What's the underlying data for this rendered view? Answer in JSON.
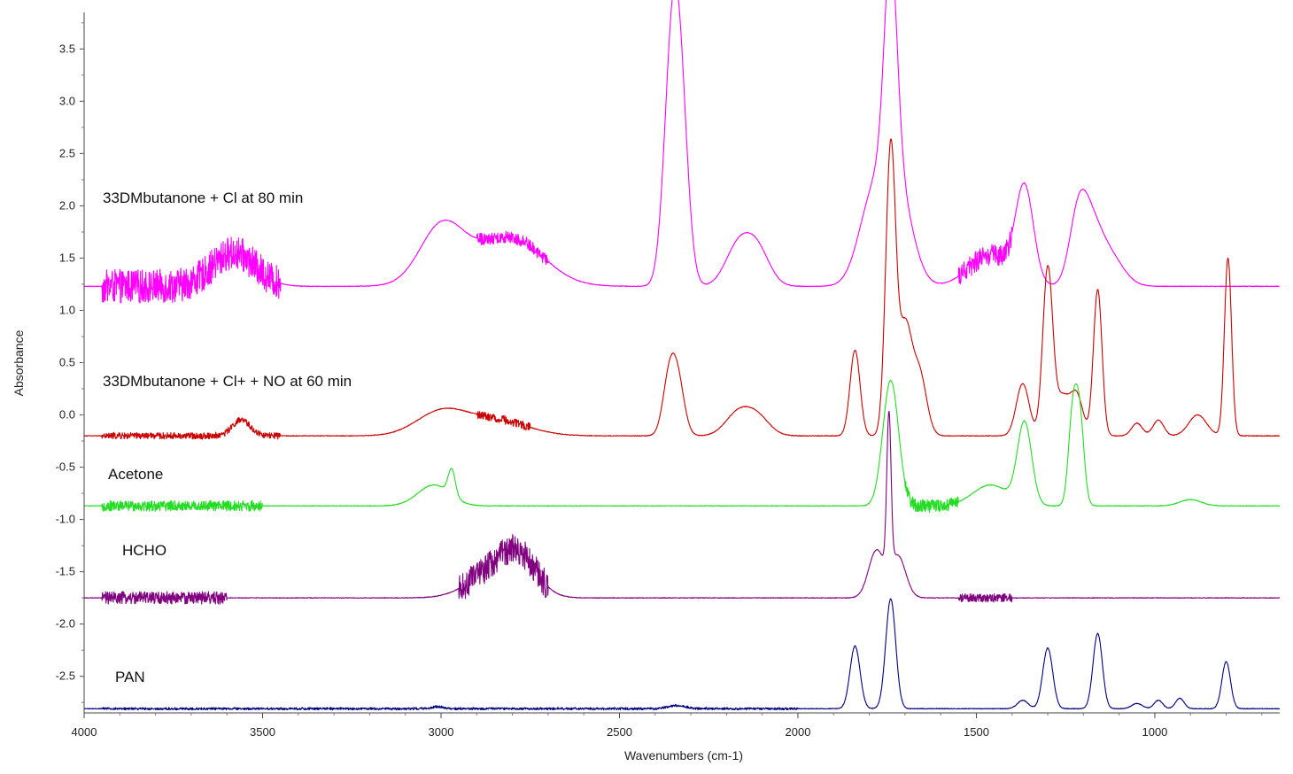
{
  "chart_data": {
    "type": "line",
    "title": "",
    "xlabel": "Wavenumbers (cm-1)",
    "ylabel": "Absorbance",
    "xlim": [
      4000,
      650
    ],
    "x_reversed": true,
    "ylim": [
      -2.85,
      3.85
    ],
    "x_ticks": [
      4000,
      3500,
      3000,
      2500,
      2000,
      1500,
      1000
    ],
    "y_ticks": [
      3.5,
      3.0,
      2.5,
      2.0,
      1.5,
      1.0,
      0.5,
      0.0,
      -0.5,
      -1.0,
      -1.5,
      -2.0,
      -2.5
    ],
    "x_tick_labels": [
      "4000",
      "3500",
      "3000",
      "2500",
      "2000",
      "1500",
      "1000"
    ],
    "y_tick_labels": [
      "3.5",
      "3.0",
      "2.5",
      "2.0",
      "1.5",
      "1.0",
      "0.5",
      "0.0",
      "-0.5",
      "-1.0",
      "-1.5",
      "-2.0",
      "-2.5"
    ],
    "grid": false,
    "legend": "inline labels",
    "series": [
      {
        "name": "33DMbutanone + Cl at 80 min",
        "color": "#ff00ff",
        "baseline": 1.23,
        "noise_regions": [
          [
            3950,
            3450,
            0.16
          ],
          [
            2900,
            2700,
            0.06
          ],
          [
            1550,
            1400,
            0.1
          ]
        ],
        "peaks": [
          [
            3580,
            0.32,
            60
          ],
          [
            3000,
            0.5,
            60
          ],
          [
            2850,
            0.3,
            110
          ],
          [
            2780,
            0.2,
            80
          ],
          [
            2355,
            1.8,
            22
          ],
          [
            2330,
            1.6,
            22
          ],
          [
            2170,
            0.35,
            35
          ],
          [
            2115,
            0.35,
            35
          ],
          [
            1790,
            0.8,
            40
          ],
          [
            1740,
            2.05,
            18
          ],
          [
            1720,
            0.9,
            40
          ],
          [
            1460,
            0.3,
            60
          ],
          [
            1365,
            0.9,
            25
          ],
          [
            1215,
            0.6,
            25
          ],
          [
            1180,
            0.45,
            30
          ],
          [
            1130,
            0.3,
            40
          ]
        ]
      },
      {
        "name": "33DMbutanone + Cl+ + NO at 60 min",
        "color": "#cc0000",
        "baseline": -0.2,
        "noise_regions": [
          [
            3950,
            3450,
            0.03
          ],
          [
            2900,
            2750,
            0.04
          ]
        ],
        "peaks": [
          [
            3560,
            0.15,
            25
          ],
          [
            3000,
            0.22,
            70
          ],
          [
            2850,
            0.15,
            90
          ],
          [
            2360,
            0.55,
            18
          ],
          [
            2335,
            0.45,
            18
          ],
          [
            2170,
            0.2,
            35
          ],
          [
            2115,
            0.18,
            35
          ],
          [
            1840,
            0.82,
            14
          ],
          [
            1740,
            2.75,
            14
          ],
          [
            1700,
            1.0,
            18
          ],
          [
            1660,
            0.6,
            20
          ],
          [
            1370,
            0.5,
            18
          ],
          [
            1300,
            1.6,
            14
          ],
          [
            1260,
            0.35,
            18
          ],
          [
            1220,
            0.4,
            18
          ],
          [
            1160,
            1.4,
            12
          ],
          [
            1050,
            0.12,
            15
          ],
          [
            990,
            0.15,
            15
          ],
          [
            880,
            0.2,
            25
          ],
          [
            795,
            1.7,
            10
          ]
        ]
      },
      {
        "name": "Acetone",
        "color": "#22dd22",
        "baseline": -0.87,
        "noise_regions": [
          [
            3950,
            3500,
            0.05
          ],
          [
            1700,
            1550,
            0.06
          ]
        ],
        "peaks": [
          [
            3020,
            0.2,
            45
          ],
          [
            2970,
            0.25,
            10
          ],
          [
            1740,
            1.2,
            22
          ],
          [
            1460,
            0.2,
            50
          ],
          [
            1365,
            0.78,
            20
          ],
          [
            1230,
            0.85,
            12
          ],
          [
            1210,
            0.8,
            12
          ],
          [
            900,
            0.06,
            30
          ]
        ]
      },
      {
        "name": "HCHO",
        "color": "#800080",
        "baseline": -1.75,
        "noise_regions": [
          [
            3950,
            3600,
            0.06
          ],
          [
            2950,
            2700,
            0.14
          ],
          [
            1550,
            1400,
            0.04
          ]
        ],
        "peaks": [
          [
            2850,
            0.25,
            70
          ],
          [
            2780,
            0.3,
            50
          ],
          [
            1780,
            0.45,
            22
          ],
          [
            1745,
            1.45,
            6
          ],
          [
            1720,
            0.4,
            22
          ]
        ]
      },
      {
        "name": "PAN",
        "color": "#000080",
        "baseline": -2.81,
        "noise_regions": [
          [
            3950,
            2000,
            0.01
          ]
        ],
        "peaks": [
          [
            3010,
            0.02,
            15
          ],
          [
            2340,
            0.03,
            25
          ],
          [
            1840,
            0.6,
            14
          ],
          [
            1740,
            1.05,
            14
          ],
          [
            1370,
            0.08,
            15
          ],
          [
            1300,
            0.58,
            14
          ],
          [
            1160,
            0.72,
            13
          ],
          [
            1050,
            0.05,
            15
          ],
          [
            990,
            0.08,
            12
          ],
          [
            930,
            0.1,
            12
          ],
          [
            800,
            0.45,
            12
          ]
        ]
      }
    ]
  }
}
